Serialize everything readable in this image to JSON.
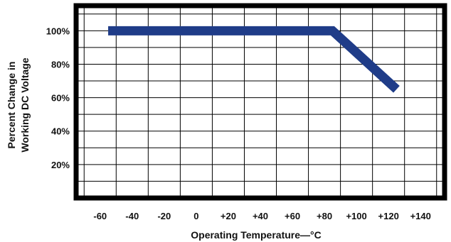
{
  "chart_data": {
    "type": "line",
    "xlabel": "Operating Temperature—°C",
    "ylabel_lines": [
      "Percent Change in",
      "Working DC Voltage"
    ],
    "x_ticks": [
      "-60",
      "-40",
      "-20",
      "0",
      "+20",
      "+40",
      "+60",
      "+80",
      "+100",
      "+120",
      "+140"
    ],
    "y_ticks": [
      "100%",
      "80%",
      "60%",
      "40%",
      "20%"
    ],
    "xlim": [
      -75,
      155
    ],
    "ylim": [
      0,
      115
    ],
    "grid": true,
    "series": [
      {
        "x": [
          -55,
          85,
          125
        ],
        "y": [
          100,
          100,
          65
        ],
        "color": "#1f3c88"
      }
    ]
  }
}
